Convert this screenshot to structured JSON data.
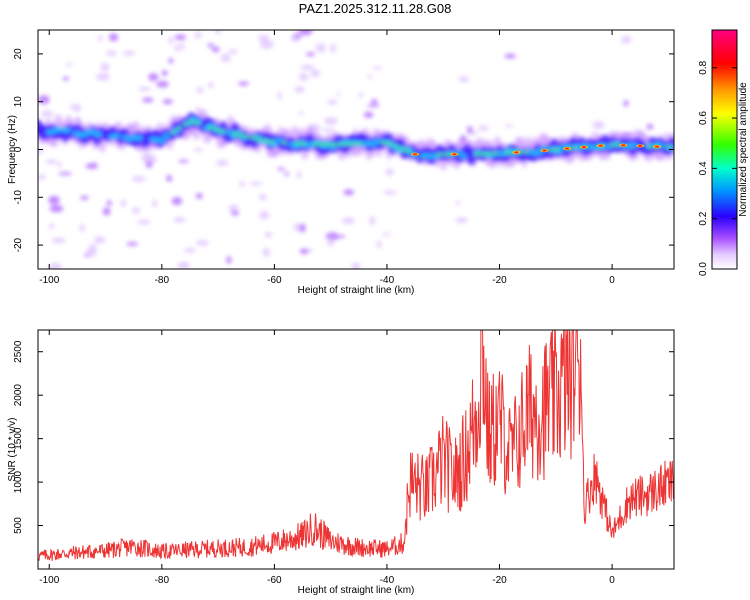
{
  "title": "PAZ1.2025.312.11.28.G08",
  "chart_data": [
    {
      "type": "heatmap",
      "xlabel": "Height of straight line (km)",
      "ylabel": "Frequency (Hz)",
      "xlim": [
        -102,
        11
      ],
      "ylim": [
        -25,
        25
      ],
      "xticks": [
        -100,
        -80,
        -60,
        -40,
        -20,
        0
      ],
      "yticks": [
        -20,
        -10,
        0,
        10,
        20
      ],
      "colorbar": {
        "label": "Normalized spectral amplitude",
        "range": [
          0,
          0.95
        ],
        "ticks": [
          0.0,
          0.2,
          0.4,
          0.6,
          0.8
        ],
        "colors": [
          "#ffffff",
          "#d9b3ff",
          "#9933ff",
          "#2200ff",
          "#00aaff",
          "#00ffaa",
          "#44ff00",
          "#ffff00",
          "#ff6600",
          "#ff0000",
          "#ff0080"
        ]
      },
      "ridge": [
        {
          "x": -100,
          "f": 4.0
        },
        {
          "x": -90,
          "f": 3.0
        },
        {
          "x": -80,
          "f": 2.0
        },
        {
          "x": -75,
          "f": 6.0
        },
        {
          "x": -70,
          "f": 4.0
        },
        {
          "x": -60,
          "f": 1.5
        },
        {
          "x": -50,
          "f": 1.0
        },
        {
          "x": -40,
          "f": 1.5
        },
        {
          "x": -35,
          "f": -1.0
        },
        {
          "x": -25,
          "f": -1.0
        },
        {
          "x": -15,
          "f": -0.5
        },
        {
          "x": -5,
          "f": 0.5
        },
        {
          "x": 0,
          "f": 1.0
        },
        {
          "x": 10,
          "f": 0.5
        }
      ]
    },
    {
      "type": "line",
      "xlabel": "Height of straight line (km)",
      "ylabel": "SNR (10 * v/v)",
      "xlim": [
        -102,
        11
      ],
      "ylim": [
        0,
        2750
      ],
      "xticks": [
        -100,
        -80,
        -60,
        -40,
        -20,
        0
      ],
      "yticks": [
        500,
        1000,
        1500,
        2000,
        2500
      ],
      "series": [
        {
          "name": "SNR",
          "color": "#ee3333",
          "x": [
            -102,
            -95,
            -90,
            -85,
            -80,
            -75,
            -70,
            -65,
            -60,
            -55,
            -53,
            -50,
            -45,
            -40,
            -37,
            -36,
            -33,
            -30,
            -28,
            -26,
            -24,
            -23,
            -22,
            -20,
            -18,
            -17,
            -15,
            -12,
            -10,
            -8,
            -6,
            -5.5,
            -5,
            -3,
            0,
            3,
            6,
            9,
            11
          ],
          "values": [
            150,
            190,
            210,
            260,
            200,
            220,
            240,
            250,
            300,
            380,
            480,
            320,
            250,
            230,
            300,
            1000,
            900,
            1250,
            1050,
            1300,
            1800,
            2600,
            1500,
            1700,
            1300,
            1450,
            1800,
            1850,
            2000,
            2200,
            2450,
            2550,
            700,
            1100,
            400,
            800,
            850,
            950,
            1000
          ]
        }
      ]
    }
  ]
}
